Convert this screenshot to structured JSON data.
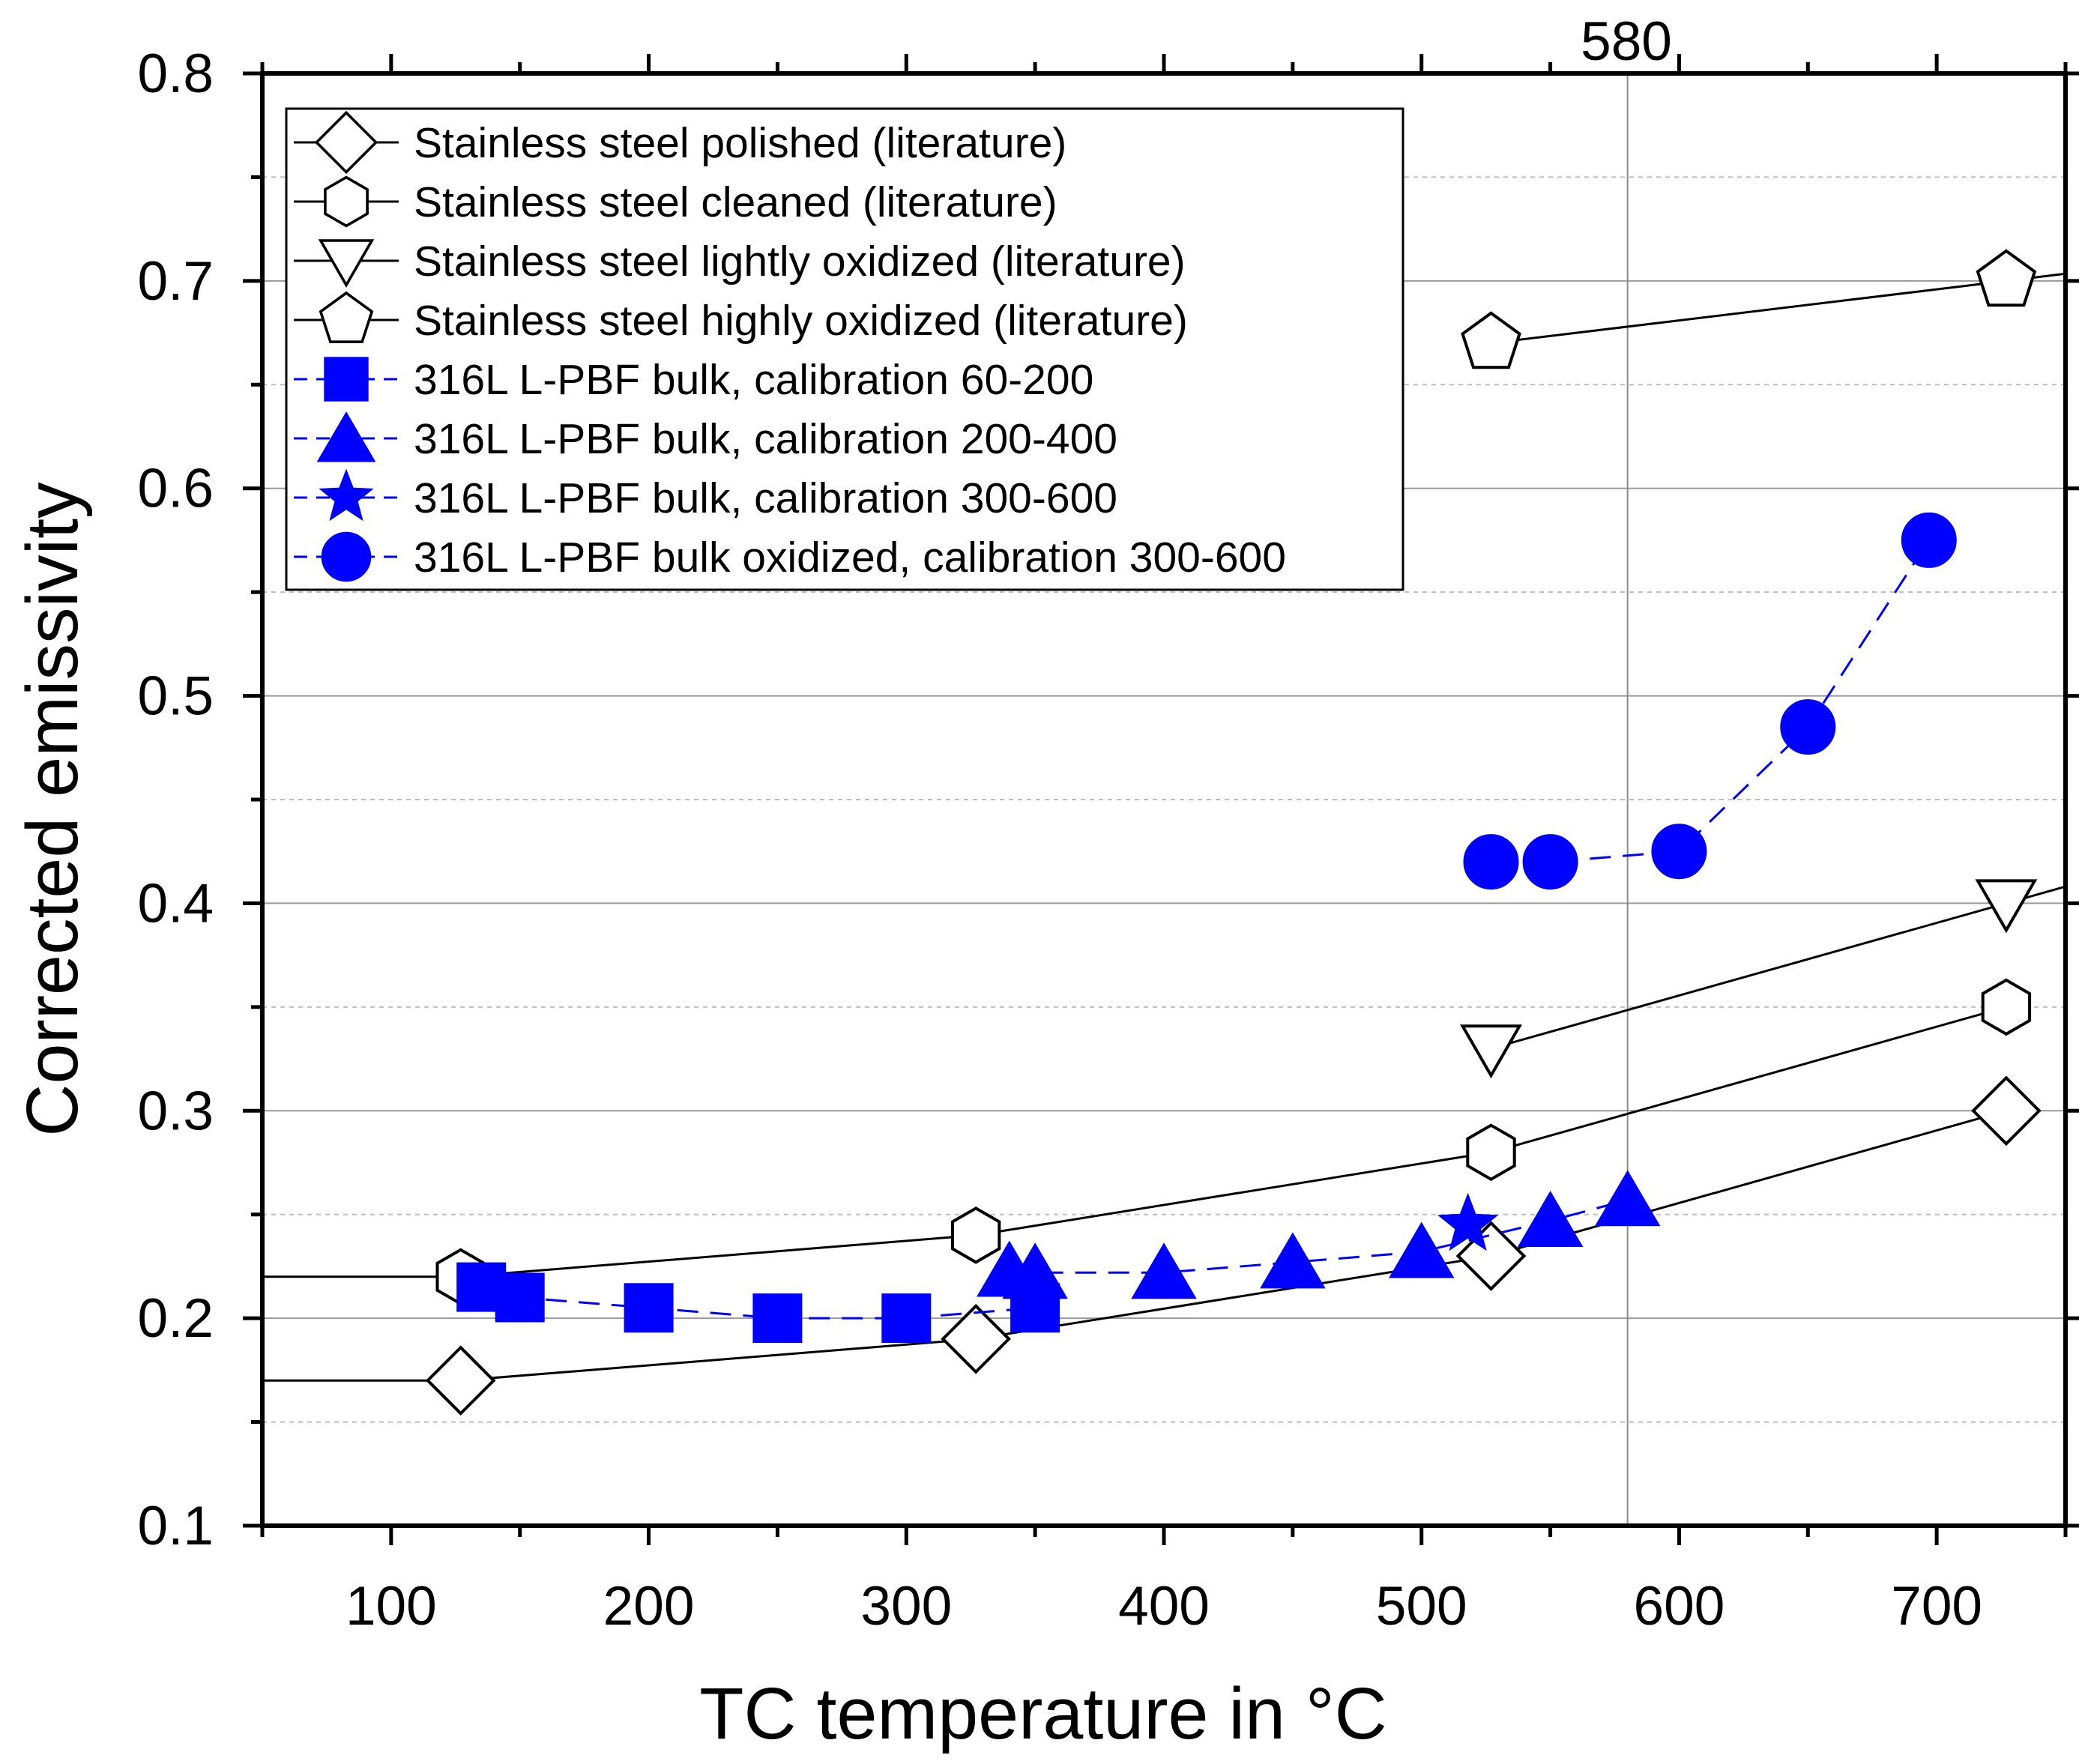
{
  "chart_data": {
    "type": "scatter",
    "xlabel": "TC temperature in °C",
    "ylabel": "Corrected emissivity",
    "xlim": [
      50,
      750
    ],
    "ylim": [
      0.1,
      0.8
    ],
    "x_ticks": [
      100,
      200,
      300,
      400,
      500,
      600,
      700
    ],
    "y_ticks": [
      0.1,
      0.2,
      0.3,
      0.4,
      0.5,
      0.6,
      0.7,
      0.8
    ],
    "y_tick_labels": [
      "0.1",
      "0.2",
      "0.3",
      "0.4",
      "0.5",
      "0.6",
      "0.7",
      "0.8"
    ],
    "grid": "major solid, minor dashed (horizontal)",
    "reference_line": {
      "x": 580,
      "label": "580"
    },
    "legend_position": "top-left",
    "series": [
      {
        "name": "Stainless steel polished (literature)",
        "marker": "diamond",
        "filled": false,
        "color": "#000000",
        "line": "solid",
        "extends_left_to_axis": true,
        "x": [
          127,
          327,
          527,
          727
        ],
        "y": [
          0.17,
          0.19,
          0.23,
          0.3
        ]
      },
      {
        "name": "Stainless steel cleaned (literature)",
        "marker": "hexagon",
        "filled": false,
        "color": "#000000",
        "line": "solid",
        "extends_left_to_axis": true,
        "x": [
          127,
          327,
          527,
          727
        ],
        "y": [
          0.22,
          0.24,
          0.28,
          0.35
        ]
      },
      {
        "name": "Stainless steel lightly oxidized (literature)",
        "marker": "triangle-down",
        "filled": false,
        "color": "#000000",
        "line": "solid",
        "extends_right_to_axis": true,
        "x": [
          527,
          727
        ],
        "y": [
          0.33,
          0.4
        ]
      },
      {
        "name": "Stainless steel highly oxidized (literature)",
        "marker": "pentagon",
        "filled": false,
        "color": "#000000",
        "line": "solid",
        "extends_right_to_axis": true,
        "x": [
          527,
          727
        ],
        "y": [
          0.67,
          0.7
        ]
      },
      {
        "name": "316L L-PBF bulk, calibration 60-200",
        "marker": "square",
        "filled": true,
        "color": "#0000ff",
        "line": "dashed",
        "x": [
          135,
          150,
          200,
          250,
          300,
          350
        ],
        "y": [
          0.215,
          0.21,
          0.205,
          0.2,
          0.2,
          0.205
        ]
      },
      {
        "name": "316L L-PBF bulk, calibration 200-400",
        "marker": "triangle-up",
        "filled": true,
        "color": "#0000ff",
        "line": "dashed",
        "x": [
          340,
          350,
          400,
          450,
          500,
          550,
          580
        ],
        "y": [
          0.223,
          0.222,
          0.222,
          0.227,
          0.232,
          0.247,
          0.257
        ]
      },
      {
        "name": "316L L-PBF bulk, calibration 300-600",
        "marker": "star",
        "filled": true,
        "color": "#0000ff",
        "line": "dashed",
        "x": [
          518
        ],
        "y": [
          0.245
        ]
      },
      {
        "name": "316L L-PBF bulk oxidized, calibration 300-600",
        "marker": "circle",
        "filled": true,
        "color": "#0000ff",
        "line": "dashed",
        "x": [
          527,
          550,
          600,
          650,
          697
        ],
        "y": [
          0.42,
          0.42,
          0.425,
          0.485,
          0.575
        ]
      }
    ]
  }
}
